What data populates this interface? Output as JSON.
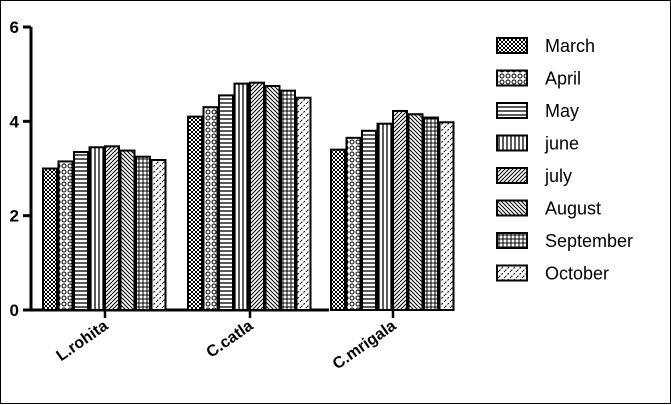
{
  "chart_data": {
    "type": "bar",
    "title": "",
    "xlabel": "",
    "ylabel": "",
    "ylim": [
      0,
      6
    ],
    "yticks": [
      0,
      2,
      4,
      6
    ],
    "categories": [
      "L.rohita",
      "C.catla",
      "C.mrigala"
    ],
    "legend_position": "right",
    "series": [
      {
        "name": "March",
        "pattern": "checker",
        "values": [
          3.0,
          4.1,
          3.4
        ]
      },
      {
        "name": "April",
        "pattern": "circles",
        "values": [
          3.15,
          4.3,
          3.65
        ]
      },
      {
        "name": "May",
        "pattern": "hlines",
        "values": [
          3.35,
          4.55,
          3.8
        ]
      },
      {
        "name": "june",
        "pattern": "vlines",
        "values": [
          3.45,
          4.8,
          3.95
        ]
      },
      {
        "name": "july",
        "pattern": "diag-up",
        "values": [
          3.47,
          4.82,
          4.22
        ]
      },
      {
        "name": "August",
        "pattern": "diag-down",
        "values": [
          3.38,
          4.75,
          4.15
        ]
      },
      {
        "name": "September",
        "pattern": "grid",
        "values": [
          3.25,
          4.65,
          4.08
        ]
      },
      {
        "name": "October",
        "pattern": "diag-dashed",
        "values": [
          3.18,
          4.5,
          3.98
        ]
      }
    ]
  }
}
